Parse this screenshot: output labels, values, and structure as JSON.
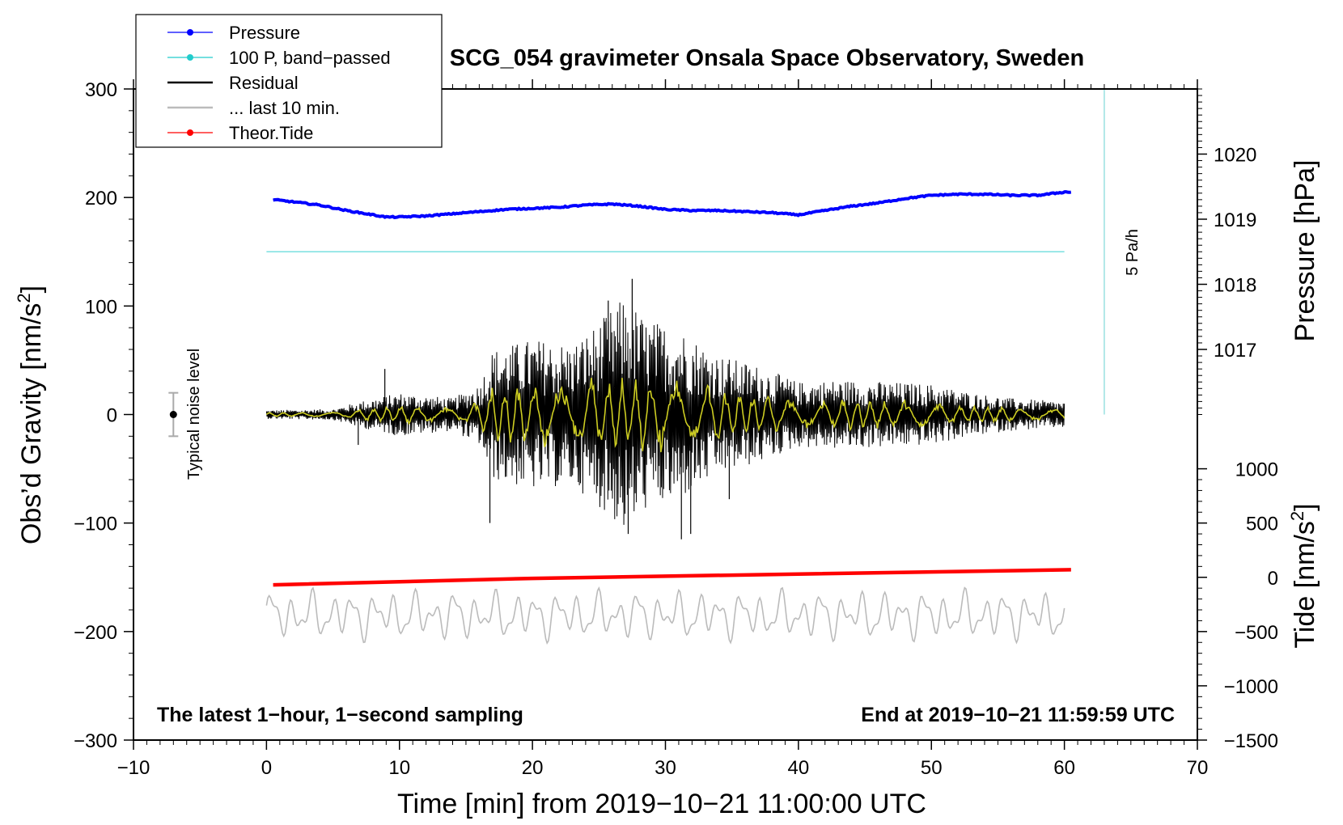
{
  "chart_data": {
    "type": "line",
    "title": "SCG_054 gravimeter Onsala Space Observatory, Sweden",
    "xlabel": "Time [min] from 2019−10−21 11:00:00 UTC",
    "ylabel_left": "Obs'd Gravity [nm/s2]",
    "ylabel_left_main": "Obs’d Gravity [nm/s",
    "ylabel_left_sup": "2",
    "ylabel_left_end": "]",
    "ylabel_right_pressure": "Pressure [hPa]",
    "ylabel_right_tide_main": "Tide [nm/s",
    "ylabel_right_tide_sup": "2",
    "ylabel_right_tide_end": "]",
    "xlim": [
      -10,
      70
    ],
    "ylim_left": [
      -300,
      300
    ],
    "x_ticks": [
      -10,
      0,
      10,
      20,
      30,
      40,
      50,
      60,
      70
    ],
    "x_tick_labels": [
      "−10",
      "0",
      "10",
      "20",
      "30",
      "40",
      "50",
      "60",
      "70"
    ],
    "y_left_ticks": [
      300,
      200,
      100,
      0,
      -100,
      -200,
      -300
    ],
    "y_left_tick_labels": [
      "300",
      "200",
      "100",
      "0",
      "−100",
      "−200",
      "−300"
    ],
    "pressure_axis": {
      "ticks": [
        1020,
        1019,
        1018,
        1017
      ],
      "tick_labels": [
        "1020",
        "1019",
        "1018",
        "1017"
      ],
      "gravity_equiv": [
        240,
        180,
        120,
        60
      ]
    },
    "tide_axis": {
      "ticks": [
        1000,
        500,
        0,
        -500,
        -1000,
        -1500
      ],
      "tick_labels": [
        "1000",
        "500",
        "0",
        "−500",
        "−1000",
        "−1500"
      ],
      "gravity_equiv": [
        -50,
        -100,
        -150,
        -200,
        -250,
        -300
      ]
    },
    "legend": [
      {
        "label": "Pressure",
        "color": "#0000ff",
        "marker": true
      },
      {
        "label": "100 P, band−passed",
        "color": "#22cccc",
        "marker": true
      },
      {
        "label": "Residual",
        "color": "#000000",
        "marker": false
      },
      {
        "label": "... last 10 min.",
        "color": "#bbbbbb",
        "marker": false
      },
      {
        "label": "Theor.Tide",
        "color": "#ff0000",
        "marker": true
      }
    ],
    "legend_position": "top-left",
    "series": [
      {
        "name": "Pressure",
        "color": "#0000ff",
        "x": [
          0.5,
          2,
          4,
          6,
          8,
          9,
          10,
          12,
          14,
          16,
          18,
          20,
          22,
          24,
          26,
          28,
          30,
          32,
          34,
          36,
          38,
          40,
          42,
          44,
          46,
          48,
          50,
          52,
          54,
          56,
          58,
          60,
          60.5
        ],
        "y": [
          198,
          196,
          193,
          188,
          184,
          182,
          182,
          183,
          185,
          187,
          189,
          190,
          191,
          193,
          194,
          192,
          189,
          188,
          188,
          187,
          186,
          184,
          188,
          192,
          195,
          199,
          202,
          203,
          203,
          202,
          202,
          205,
          205
        ]
      },
      {
        "name": "100 P, band-passed",
        "color": "#22cccc",
        "x": [
          0,
          60
        ],
        "y": [
          150,
          150
        ]
      },
      {
        "name": "Theor.Tide",
        "color": "#ff0000",
        "x": [
          0.5,
          20,
          40,
          60.5
        ],
        "y": [
          -157,
          -151,
          -147,
          -143
        ]
      }
    ],
    "residual_envelope": {
      "description": "Residual amplitude envelope vs. time",
      "x": [
        0,
        5,
        7,
        10,
        14,
        16,
        17,
        20,
        23,
        25,
        27,
        28.5,
        31,
        34,
        37,
        40,
        43,
        47,
        50,
        53,
        56,
        60
      ],
      "amplitude": [
        4,
        5,
        12,
        20,
        15,
        28,
        60,
        70,
        65,
        85,
        110,
        88,
        80,
        55,
        45,
        30,
        32,
        30,
        28,
        20,
        15,
        12
      ]
    },
    "residual_extremes": {
      "x": [
        6.9,
        8.9,
        16.8,
        25.7,
        27.2,
        27.5,
        31.2,
        31.9,
        34.8
      ],
      "y": [
        -28,
        42,
        -100,
        105,
        -110,
        125,
        -115,
        -110,
        -78
      ]
    },
    "yellow_overlay_amplitude": 35,
    "last10_baseline": -185,
    "last10_amplitude": 22,
    "noise_bar": {
      "x": -7,
      "y": 0,
      "err": 20,
      "label": "Typical noise level"
    },
    "rate_bar": {
      "x": 63,
      "y_from": 300,
      "y_to": 0,
      "label": "5 Pa/h"
    },
    "footnote_left": "The latest 1−hour, 1−second sampling",
    "footnote_right": "End at 2019−10−21 11:59:59 UTC",
    "colors": {
      "residual": "#000000",
      "overlay": "#cccc22",
      "last10": "#bbbbbb",
      "rate_line": "#99e0e0",
      "noise_bar": "#aaaaaa"
    }
  }
}
